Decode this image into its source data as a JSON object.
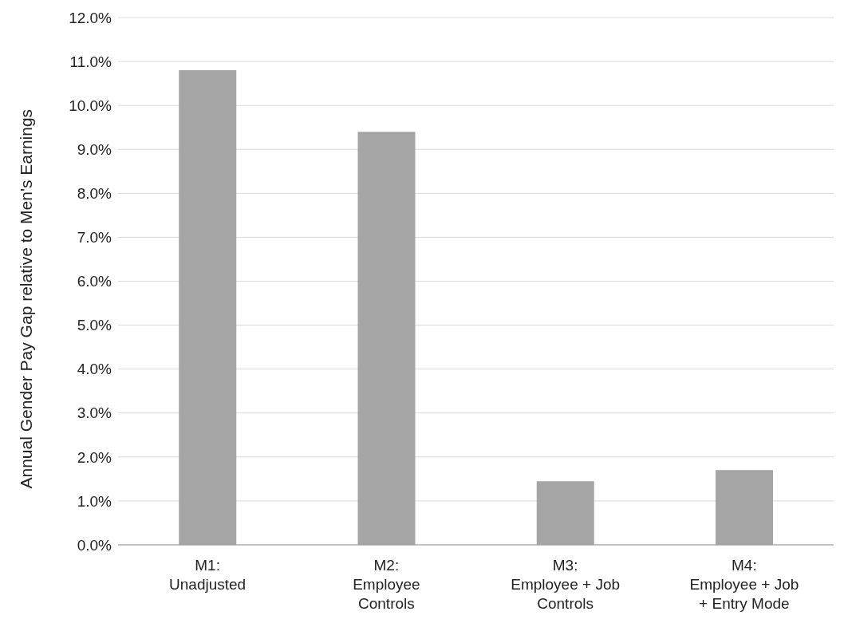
{
  "chart_data": {
    "type": "bar",
    "ylabel": "Annual Gender Pay Gap relative to Men's Earnings",
    "categories": [
      "M1:\nUnadjusted",
      "M2:\nEmployee\nControls",
      "M3:\nEmployee + Job\nControls",
      "M4:\nEmployee + Job\n+ Entry Mode"
    ],
    "values": [
      10.8,
      9.4,
      1.45,
      1.7
    ],
    "color": "#a5a5a5",
    "ylim": [
      0,
      12
    ],
    "yticks": [
      {
        "value": 0,
        "label": "0.0%"
      },
      {
        "value": 1,
        "label": "1.0%"
      },
      {
        "value": 2,
        "label": "2.0%"
      },
      {
        "value": 3,
        "label": "3.0%"
      },
      {
        "value": 4,
        "label": "4.0%"
      },
      {
        "value": 5,
        "label": "5.0%"
      },
      {
        "value": 6,
        "label": "6.0%"
      },
      {
        "value": 7,
        "label": "7.0%"
      },
      {
        "value": 8,
        "label": "8.0%"
      },
      {
        "value": 9,
        "label": "9.0%"
      },
      {
        "value": 10,
        "label": "10.0%"
      },
      {
        "value": 11,
        "label": "11.0%"
      },
      {
        "value": 12,
        "label": "12.0%"
      }
    ],
    "grid": "y"
  }
}
